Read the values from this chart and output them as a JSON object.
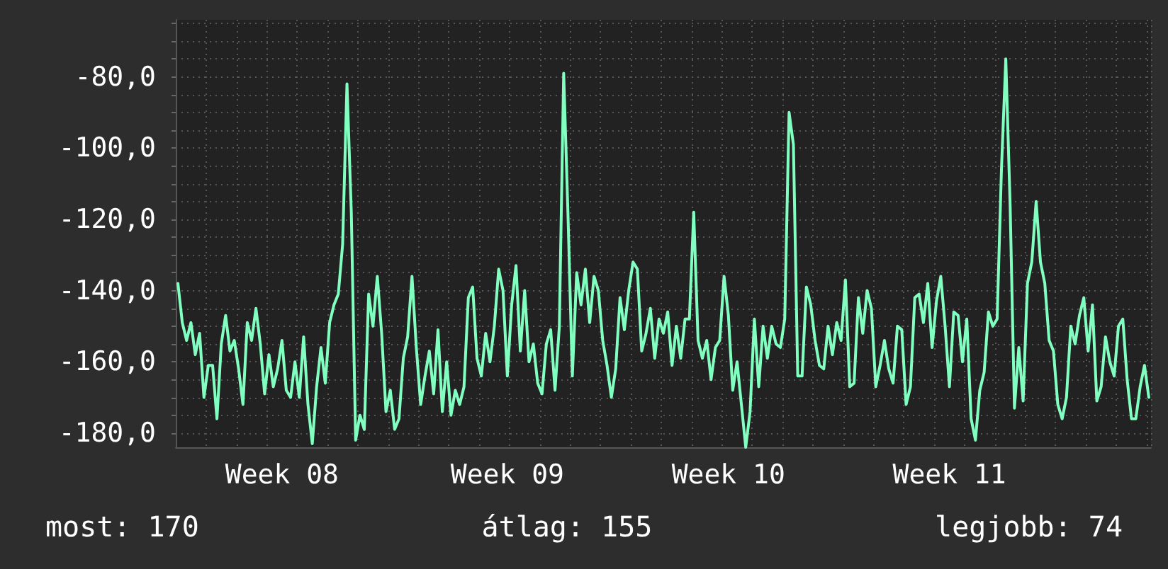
{
  "chart_data": {
    "type": "line",
    "categories": [
      null,
      null,
      null,
      null,
      null,
      null,
      null,
      null,
      null,
      null,
      null,
      null,
      null,
      null,
      null,
      null,
      null,
      null,
      null,
      null,
      null,
      null,
      null,
      null,
      "Week 08",
      null,
      null,
      null,
      null,
      null,
      null,
      null,
      null,
      null,
      null,
      null,
      null,
      null,
      null,
      null,
      null,
      null,
      null,
      null,
      null,
      null,
      null,
      null,
      null,
      null,
      null,
      null,
      null,
      null,
      null,
      null,
      null,
      null,
      null,
      null,
      null,
      null,
      null,
      null,
      null,
      null,
      null,
      null,
      null,
      null,
      null,
      null,
      null,
      null,
      null,
      null,
      "Week 09",
      null,
      null,
      null,
      null,
      null,
      null,
      null,
      null,
      null,
      null,
      null,
      null,
      null,
      null,
      null,
      null,
      null,
      null,
      null,
      null,
      null,
      null,
      null,
      null,
      null,
      null,
      null,
      null,
      null,
      null,
      null,
      null,
      null,
      null,
      null,
      null,
      null,
      null,
      null,
      null,
      null,
      null,
      null,
      null,
      null,
      null,
      null,
      null,
      null,
      null,
      "Week 10",
      null,
      null,
      null,
      null,
      null,
      null,
      null,
      null,
      null,
      null,
      null,
      null,
      null,
      null,
      null,
      null,
      null,
      null,
      null,
      null,
      null,
      null,
      null,
      null,
      null,
      null,
      null,
      null,
      null,
      null,
      null,
      null,
      null,
      null,
      null,
      null,
      null,
      null,
      null,
      null,
      null,
      null,
      null,
      null,
      null,
      null,
      null,
      null,
      null,
      null,
      "Week 11",
      null,
      null,
      null,
      null,
      null,
      null,
      null,
      null,
      null,
      null,
      null,
      null,
      null,
      null,
      null,
      null,
      null,
      null,
      null,
      null,
      null,
      null,
      null,
      null,
      null,
      null,
      null,
      null,
      null,
      null,
      null,
      null,
      null,
      null,
      null,
      null,
      null,
      null,
      null,
      null,
      null,
      null,
      null,
      null,
      null,
      null
    ],
    "series": [
      {
        "color": "#80ffc0",
        "values": [
          -138,
          -149,
          -154,
          -149,
          -158,
          -152,
          -170,
          -161,
          -161,
          -176,
          -155,
          -147,
          -157,
          -154,
          -162,
          -172,
          -149,
          -154,
          -145,
          -155,
          -169,
          -158,
          -167,
          -162,
          -154,
          -168,
          -170,
          -160,
          -170,
          -153,
          -172,
          -183,
          -167,
          -156,
          -166,
          -149,
          -144,
          -141,
          -127,
          -82,
          -118,
          -182,
          -175,
          -179,
          -141,
          -150,
          -136,
          -152,
          -174,
          -168,
          -179,
          -176,
          -159,
          -153,
          -136,
          -156,
          -172,
          -164,
          -157,
          -169,
          -151,
          -174,
          -160,
          -175,
          -168,
          -172,
          -167,
          -142,
          -139,
          -159,
          -164,
          -152,
          -160,
          -150,
          -134,
          -140,
          -164,
          -144,
          -133,
          -157,
          -140,
          -160,
          -155,
          -166,
          -169,
          -155,
          -151,
          -168,
          -150,
          -79,
          -119,
          -164,
          -135,
          -144,
          -134,
          -149,
          -136,
          -140,
          -154,
          -161,
          -170,
          -162,
          -142,
          -151,
          -140,
          -132,
          -134,
          -157,
          -152,
          -145,
          -159,
          -148,
          -152,
          -146,
          -161,
          -150,
          -159,
          -148,
          -148,
          -118,
          -154,
          -159,
          -154,
          -165,
          -156,
          -154,
          -136,
          -147,
          -168,
          -160,
          -172,
          -184,
          -174,
          -148,
          -167,
          -150,
          -159,
          -150,
          -155,
          -156,
          -148,
          -90,
          -99,
          -164,
          -164,
          -139,
          -144,
          -154,
          -161,
          -162,
          -150,
          -158,
          -149,
          -154,
          -137,
          -167,
          -166,
          -142,
          -152,
          -140,
          -145,
          -167,
          -161,
          -154,
          -162,
          -166,
          -150,
          -151,
          -172,
          -167,
          -142,
          -141,
          -149,
          -138,
          -156,
          -143,
          -136,
          -150,
          -167,
          -146,
          -147,
          -160,
          -148,
          -176,
          -182,
          -168,
          -163,
          -146,
          -150,
          -148,
          -106,
          -75,
          -116,
          -173,
          -156,
          -171,
          -138,
          -132,
          -115,
          -132,
          -138,
          -154,
          -157,
          -172,
          -176,
          -170,
          -150,
          -155,
          -147,
          -142,
          -157,
          -144,
          -171,
          -167,
          -153,
          -160,
          -164,
          -150,
          -148,
          -165,
          -176,
          -176,
          -167,
          -161,
          -170
        ]
      }
    ],
    "ylim": [
      -184,
      -64
    ],
    "yticks": [
      {
        "value": -180,
        "label": "-180,0"
      },
      {
        "value": -175,
        "label": null
      },
      {
        "value": -170,
        "label": null
      },
      {
        "value": -165,
        "label": null
      },
      {
        "value": -160,
        "label": "-160,0"
      },
      {
        "value": -155,
        "label": null
      },
      {
        "value": -150,
        "label": null
      },
      {
        "value": -145,
        "label": null
      },
      {
        "value": -140,
        "label": "-140,0"
      },
      {
        "value": -135,
        "label": null
      },
      {
        "value": -130,
        "label": null
      },
      {
        "value": -125,
        "label": null
      },
      {
        "value": -120,
        "label": "-120,0"
      },
      {
        "value": -115,
        "label": null
      },
      {
        "value": -110,
        "label": null
      },
      {
        "value": -105,
        "label": null
      },
      {
        "value": -100,
        "label": "-100,0"
      },
      {
        "value": -95,
        "label": null
      },
      {
        "value": -90,
        "label": null
      },
      {
        "value": -85,
        "label": null
      },
      {
        "value": -80,
        "label": "-80,0"
      },
      {
        "value": -75,
        "label": null
      },
      {
        "value": -70,
        "label": null
      },
      {
        "value": -65,
        "label": null
      }
    ],
    "annotations": [
      "most: 170",
      "átlag: 155",
      "legjobb: 74"
    ],
    "grid": true,
    "marker": "none",
    "line_style": "solid"
  }
}
